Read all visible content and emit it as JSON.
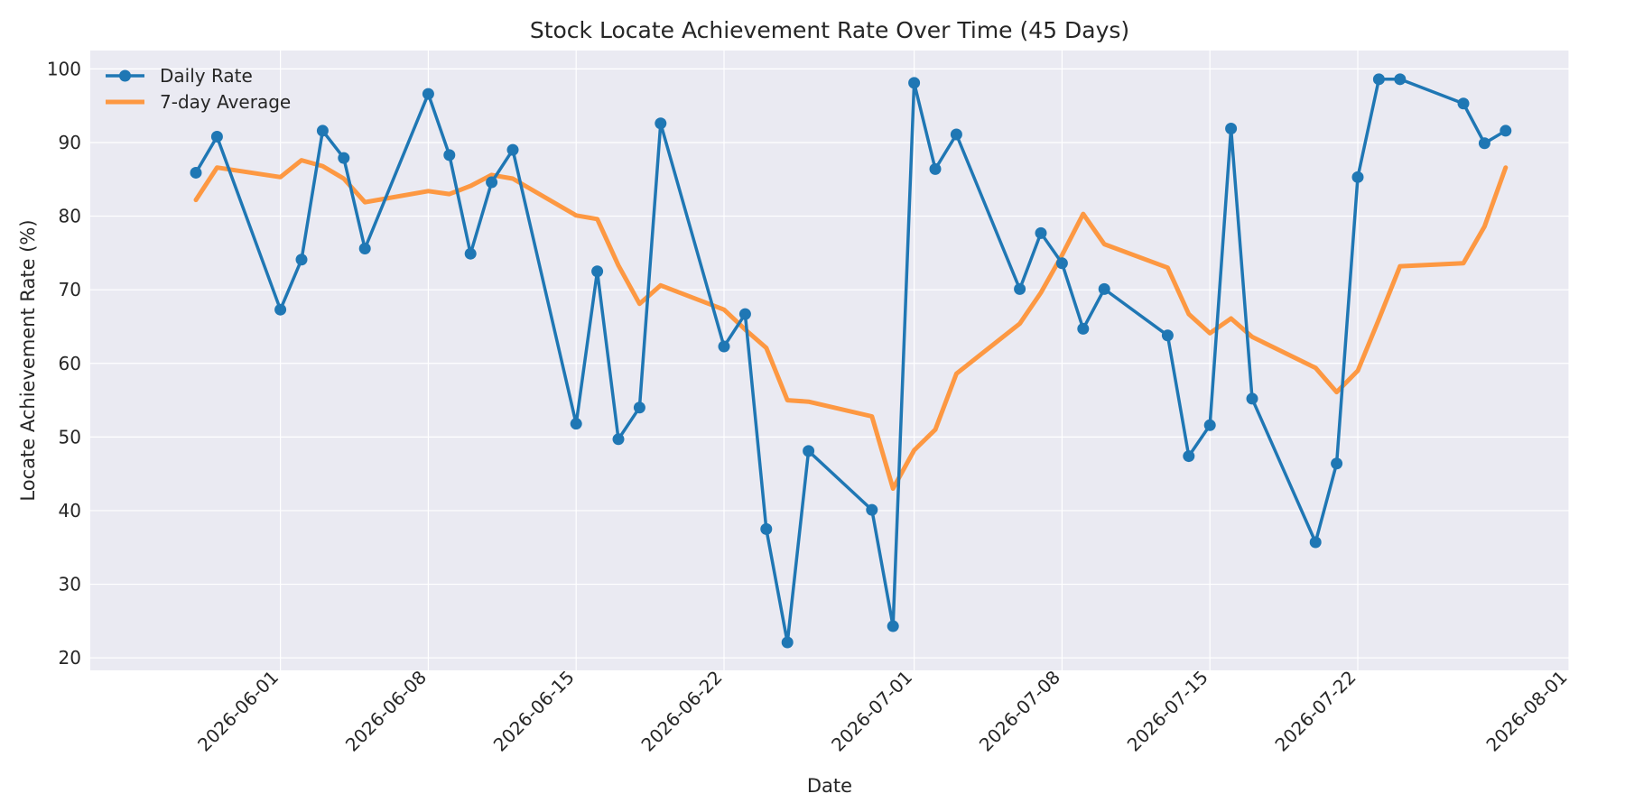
{
  "chart_data": {
    "type": "line",
    "title": "Stock Locate Achievement Rate Over Time (45 Days)",
    "xlabel": "Date",
    "ylabel": "Locate Achievement Rate (%)",
    "xlim": [
      "2026-05-23",
      "2026-08-01"
    ],
    "ylim": [
      18.3,
      102.5
    ],
    "x_ticks": [
      "2026-06-01",
      "2026-06-08",
      "2026-06-15",
      "2026-06-22",
      "2026-07-01",
      "2026-07-08",
      "2026-07-15",
      "2026-07-22",
      "2026-08-01"
    ],
    "y_ticks": [
      20,
      30,
      40,
      50,
      60,
      70,
      80,
      90,
      100
    ],
    "grid": true,
    "legend_position": "top-left",
    "x": [
      "2026-05-28",
      "2026-05-29",
      "2026-06-01",
      "2026-06-02",
      "2026-06-03",
      "2026-06-04",
      "2026-06-05",
      "2026-06-08",
      "2026-06-09",
      "2026-06-10",
      "2026-06-11",
      "2026-06-12",
      "2026-06-15",
      "2026-06-16",
      "2026-06-17",
      "2026-06-18",
      "2026-06-19",
      "2026-06-22",
      "2026-06-23",
      "2026-06-24",
      "2026-06-25",
      "2026-06-26",
      "2026-06-29",
      "2026-06-30",
      "2026-07-01",
      "2026-07-02",
      "2026-07-03",
      "2026-07-06",
      "2026-07-07",
      "2026-07-08",
      "2026-07-09",
      "2026-07-10",
      "2026-07-13",
      "2026-07-14",
      "2026-07-15",
      "2026-07-16",
      "2026-07-17",
      "2026-07-20",
      "2026-07-21",
      "2026-07-22",
      "2026-07-23",
      "2026-07-24",
      "2026-07-27",
      "2026-07-28",
      "2026-07-29"
    ],
    "series": [
      {
        "name": "Daily Rate",
        "color": "#1f77b4",
        "style": "line-with-markers",
        "values": [
          85.9,
          90.8,
          67.3,
          74.1,
          91.6,
          87.9,
          75.6,
          96.6,
          88.3,
          74.9,
          84.6,
          89.0,
          51.8,
          72.5,
          49.7,
          54.0,
          92.6,
          62.3,
          66.7,
          37.5,
          22.1,
          48.1,
          40.1,
          24.3,
          98.1,
          86.4,
          91.1,
          70.1,
          77.7,
          73.6,
          64.7,
          70.1,
          63.8,
          47.4,
          51.6,
          91.9,
          55.2,
          35.7,
          46.4,
          85.3,
          98.6,
          98.6,
          95.3,
          89.9,
          91.6
        ]
      },
      {
        "name": "7-day Average",
        "color": "#ff8c29",
        "style": "line",
        "values": [
          82.2,
          86.6,
          85.3,
          87.6,
          86.8,
          85.1,
          81.9,
          83.4,
          83.0,
          84.1,
          85.6,
          85.1,
          80.1,
          79.6,
          73.3,
          68.1,
          70.6,
          67.3,
          64.6,
          62.1,
          55.0,
          54.8,
          52.8,
          43.0,
          48.2,
          51.0,
          58.6,
          65.4,
          69.6,
          74.7,
          80.3,
          76.2,
          73.0,
          66.7,
          64.1,
          66.1,
          63.6,
          59.4,
          56.1,
          59.0,
          66.0,
          73.2,
          73.6,
          78.6,
          86.6
        ]
      }
    ]
  }
}
